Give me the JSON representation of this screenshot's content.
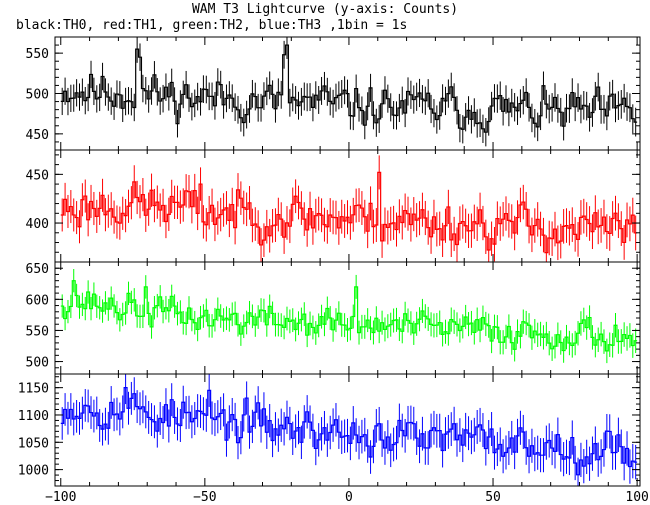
{
  "title": "WAM T3 Lightcurve (y-axis: Counts)",
  "subtitle": "black:TH0, red:TH1, green:TH2, blue:TH3 ,1bin = 1s",
  "chart_data": {
    "type": "line",
    "xlim": [
      -102,
      101
    ],
    "x_ticks": [
      -100,
      -50,
      0,
      50,
      100
    ],
    "x_tick_labels": [
      "−100",
      "−50",
      "0",
      "50",
      "100"
    ],
    "bin_width": 1,
    "grid": false,
    "panels": [
      {
        "name": "TH0",
        "color": "#000000",
        "ylim": [
          430,
          570
        ],
        "y_ticks": [
          450,
          500,
          550
        ],
        "trend": [
          [
            -100,
            505
          ],
          [
            -75,
            500
          ],
          [
            -50,
            495
          ],
          [
            0,
            485
          ],
          [
            50,
            480
          ],
          [
            100,
            475
          ]
        ],
        "amplitude": 18,
        "error": 20,
        "seed": 11,
        "spikes": [
          [
            -22,
            560
          ],
          [
            -23,
            548
          ],
          [
            -74,
            555
          ],
          [
            -73,
            545
          ]
        ]
      },
      {
        "name": "TH1",
        "color": "#ff0000",
        "ylim": [
          360,
          475
        ],
        "y_ticks": [
          400,
          450
        ],
        "trend": [
          [
            -100,
            415
          ],
          [
            -75,
            420
          ],
          [
            -50,
            412
          ],
          [
            0,
            405
          ],
          [
            50,
            398
          ],
          [
            100,
            392
          ]
        ],
        "amplitude": 16,
        "error": 20,
        "seed": 23,
        "spikes": [
          [
            10,
            452
          ],
          [
            -52,
            440
          ]
        ]
      },
      {
        "name": "TH2",
        "color": "#00ff00",
        "ylim": [
          480,
          660
        ],
        "y_ticks": [
          500,
          550,
          600,
          650
        ],
        "trend": [
          [
            -100,
            600
          ],
          [
            -75,
            585
          ],
          [
            -50,
            570
          ],
          [
            0,
            560
          ],
          [
            50,
            550
          ],
          [
            100,
            540
          ]
        ],
        "amplitude": 18,
        "error": 22,
        "seed": 37,
        "spikes": [
          [
            -96,
            630
          ],
          [
            -71,
            620
          ],
          [
            2,
            620
          ]
        ]
      },
      {
        "name": "TH3",
        "color": "#0000ff",
        "ylim": [
          970,
          1175
        ],
        "y_ticks": [
          1000,
          1050,
          1100,
          1150
        ],
        "trend": [
          [
            -100,
            1120
          ],
          [
            -75,
            1110
          ],
          [
            -50,
            1090
          ],
          [
            0,
            1065
          ],
          [
            50,
            1050
          ],
          [
            100,
            1035
          ]
        ],
        "amplitude": 26,
        "error": 35,
        "seed": 53,
        "spikes": [
          [
            -78,
            1150
          ],
          [
            -49,
            1145
          ]
        ]
      }
    ]
  }
}
